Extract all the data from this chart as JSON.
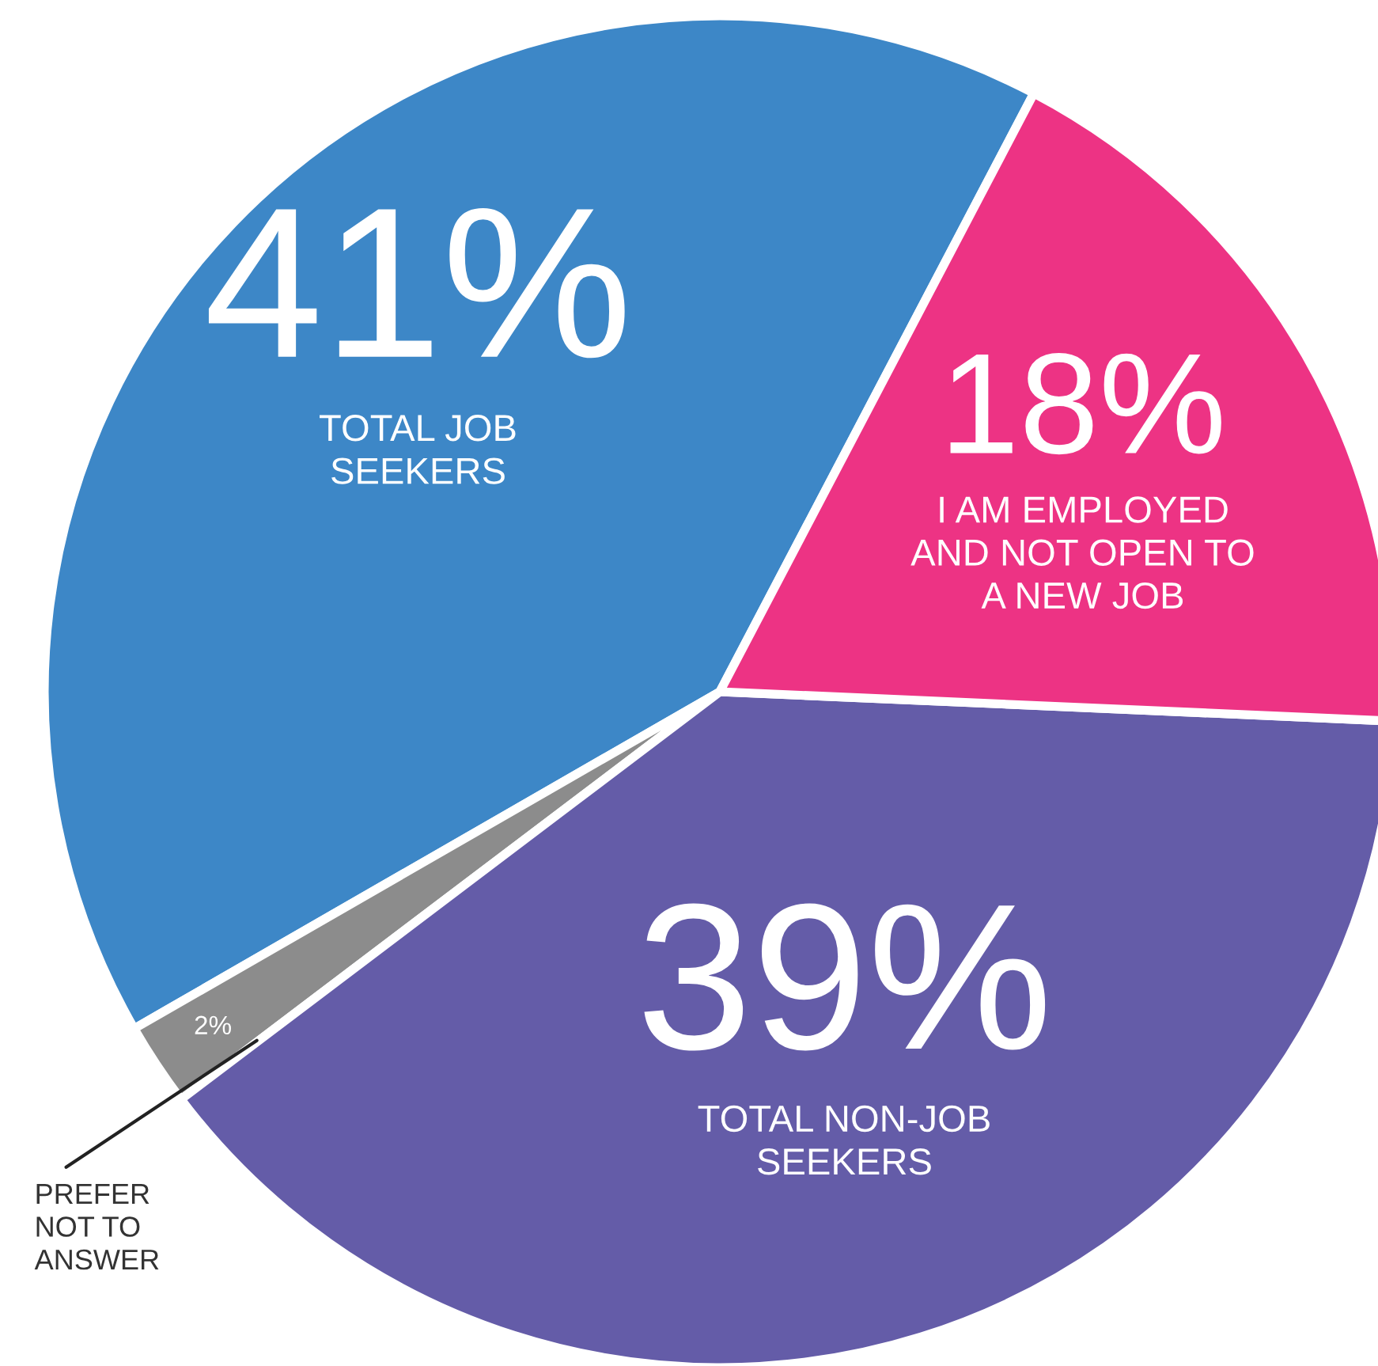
{
  "chart_data": {
    "type": "pie",
    "categories": [
      "TOTAL JOB\nSEEKERS",
      "PREFER\nNOT TO\nANSWER",
      "TOTAL NON-JOB\nSEEKERS",
      "I AM EMPLOYED\nAND NOT OPEN TO\nA NEW JOB"
    ],
    "values": [
      41,
      2,
      39,
      18
    ],
    "value_labels": [
      "41%",
      "2%",
      "39%",
      "18%"
    ],
    "colors": [
      "#3d87c7",
      "#8c8c8c",
      "#645ca8",
      "#ed3384"
    ]
  }
}
